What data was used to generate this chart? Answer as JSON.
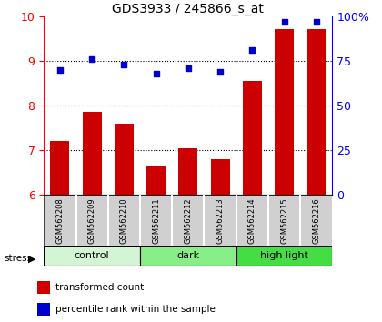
{
  "title": "GDS3933 / 245866_s_at",
  "samples": [
    "GSM562208",
    "GSM562209",
    "GSM562210",
    "GSM562211",
    "GSM562212",
    "GSM562213",
    "GSM562214",
    "GSM562215",
    "GSM562216"
  ],
  "red_bars": [
    7.2,
    7.85,
    7.6,
    6.65,
    7.05,
    6.8,
    8.55,
    9.7,
    9.7
  ],
  "blue_dots": [
    70,
    76,
    73,
    68,
    71,
    69,
    81,
    97,
    97
  ],
  "groups": [
    {
      "label": "control",
      "start": 0,
      "end": 3,
      "color": "#d4f5d4"
    },
    {
      "label": "dark",
      "start": 3,
      "end": 6,
      "color": "#88ee88"
    },
    {
      "label": "high light",
      "start": 6,
      "end": 9,
      "color": "#44dd44"
    }
  ],
  "ylim_left": [
    6,
    10
  ],
  "ylim_right": [
    0,
    100
  ],
  "yticks_left": [
    6,
    7,
    8,
    9,
    10
  ],
  "yticks_right": [
    0,
    25,
    50,
    75,
    100
  ],
  "ytick_labels_right": [
    "0",
    "25",
    "50",
    "75",
    "100%"
  ],
  "bar_color": "#cc0000",
  "dot_color": "#0000cc",
  "legend_bar": "transformed count",
  "legend_dot": "percentile rank within the sample",
  "stress_text": "stress"
}
